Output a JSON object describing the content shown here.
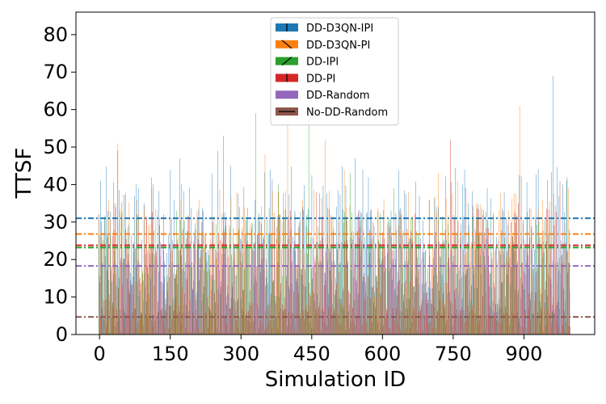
{
  "chart_data": {
    "type": "bar",
    "xlabel": "Simulation ID",
    "ylabel": "TTSF",
    "xlim": [
      -50,
      1050
    ],
    "ylim": [
      0,
      86
    ],
    "xticks": [
      0,
      150,
      300,
      450,
      600,
      750,
      900
    ],
    "yticks": [
      0,
      10,
      20,
      30,
      40,
      50,
      60,
      70,
      80
    ],
    "grid": false,
    "legend_position": "top-center",
    "series": [
      {
        "name": "DD-D3QN-IPI",
        "color": "#1f77b4",
        "hatch": "|",
        "mean": 31.0,
        "peaks": [
          [
            3,
            41
          ],
          [
            39,
            49
          ],
          [
            170,
            47
          ],
          [
            250,
            49
          ],
          [
            262,
            53
          ],
          [
            278,
            45
          ],
          [
            330,
            36
          ],
          [
            365,
            44
          ],
          [
            415,
            33
          ],
          [
            430,
            34
          ],
          [
            545,
            47
          ],
          [
            560,
            44
          ],
          [
            620,
            33
          ],
          [
            680,
            37
          ],
          [
            770,
            40
          ],
          [
            825,
            39
          ],
          [
            860,
            38
          ],
          [
            965,
            69
          ],
          [
            985,
            40
          ]
        ]
      },
      {
        "name": "DD-D3QN-PI",
        "color": "#ff7f0e",
        "hatch": "\\",
        "mean": 26.8,
        "peaks": [
          [
            40,
            51
          ],
          [
            55,
            38
          ],
          [
            110,
            39
          ],
          [
            210,
            36
          ],
          [
            307,
            34
          ],
          [
            350,
            48
          ],
          [
            400,
            59
          ],
          [
            480,
            52
          ],
          [
            520,
            44
          ],
          [
            655,
            38
          ],
          [
            720,
            43
          ],
          [
            760,
            41
          ],
          [
            890,
            61
          ],
          [
            940,
            36
          ],
          [
            995,
            39
          ]
        ]
      },
      {
        "name": "DD-IPI",
        "color": "#2ca02c",
        "hatch": "/",
        "mean": 23.2,
        "peaks": [
          [
            330,
            59
          ],
          [
            380,
            40
          ],
          [
            445,
            60
          ],
          [
            530,
            43
          ],
          [
            625,
            39
          ],
          [
            700,
            36
          ],
          [
            835,
            32
          ],
          [
            990,
            42
          ]
        ]
      },
      {
        "name": "DD-PI",
        "color": "#d62728",
        "hatch": "|",
        "mean": 23.8,
        "peaks": [
          [
            30,
            35
          ],
          [
            220,
            33
          ],
          [
            295,
            34
          ],
          [
            405,
            33
          ],
          [
            460,
            38
          ],
          [
            640,
            32
          ],
          [
            745,
            52
          ],
          [
            775,
            39
          ],
          [
            870,
            30
          ],
          [
            888,
            35
          ],
          [
            975,
            41
          ]
        ]
      },
      {
        "name": "DD-Random",
        "color": "#9467bd",
        "hatch": "",
        "mean": 18.3,
        "peaks": [
          [
            100,
            22
          ],
          [
            200,
            27
          ],
          [
            310,
            25
          ],
          [
            470,
            26
          ],
          [
            610,
            30
          ],
          [
            730,
            28
          ],
          [
            930,
            26
          ]
        ]
      },
      {
        "name": "No-DD-Random",
        "color": "#8c564b",
        "hatch": "-",
        "mean": 4.7,
        "peaks": [
          [
            60,
            12
          ],
          [
            160,
            10
          ],
          [
            280,
            14
          ],
          [
            420,
            11
          ],
          [
            580,
            13
          ],
          [
            720,
            9
          ],
          [
            880,
            12
          ],
          [
            960,
            10
          ]
        ]
      }
    ]
  }
}
